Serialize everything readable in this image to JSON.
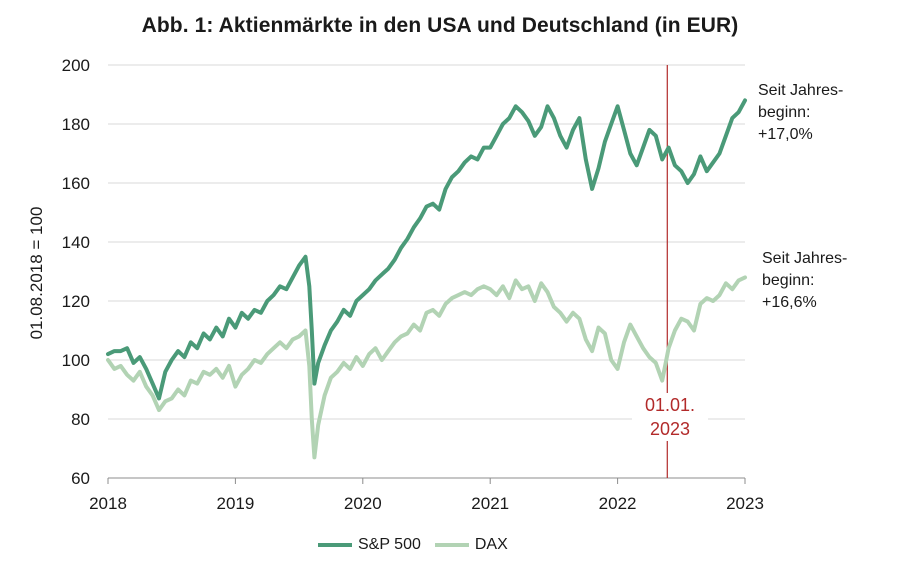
{
  "chart_data": {
    "type": "line",
    "title": "Abb. 1: Aktienmärkte  in den USA und Deutschland  (in EUR)",
    "ylabel": "01.08.2018 = 100",
    "xlabel": "",
    "ylim": [
      60,
      200
    ],
    "xlim": [
      2018,
      2023
    ],
    "yticks": [
      "200",
      "180",
      "160",
      "140",
      "120",
      "100",
      "80",
      "60"
    ],
    "xticks": [
      "2018",
      "2019",
      "2020",
      "2021",
      "2022",
      "2023"
    ],
    "grid": "horizontal",
    "legend_position": "bottom",
    "series": [
      {
        "name": "S&P 500",
        "color": "#4a9a78",
        "x": [
          2018.0,
          2018.05,
          2018.1,
          2018.15,
          2018.2,
          2018.25,
          2018.3,
          2018.35,
          2018.4,
          2018.45,
          2018.5,
          2018.55,
          2018.6,
          2018.65,
          2018.7,
          2018.75,
          2018.8,
          2018.85,
          2018.9,
          2018.95,
          2019.0,
          2019.05,
          2019.1,
          2019.15,
          2019.2,
          2019.25,
          2019.3,
          2019.35,
          2019.4,
          2019.45,
          2019.5,
          2019.55,
          2019.58,
          2019.6,
          2019.62,
          2019.65,
          2019.7,
          2019.75,
          2019.8,
          2019.85,
          2019.9,
          2019.95,
          2020.0,
          2020.05,
          2020.1,
          2020.15,
          2020.2,
          2020.25,
          2020.3,
          2020.35,
          2020.4,
          2020.45,
          2020.5,
          2020.55,
          2020.6,
          2020.65,
          2020.7,
          2020.75,
          2020.8,
          2020.85,
          2020.9,
          2020.95,
          2021.0,
          2021.05,
          2021.1,
          2021.15,
          2021.2,
          2021.25,
          2021.3,
          2021.35,
          2021.4,
          2021.45,
          2021.5,
          2021.55,
          2021.6,
          2021.65,
          2021.7,
          2021.75,
          2021.8,
          2021.85,
          2021.9,
          2021.95,
          2022.0,
          2022.05,
          2022.1,
          2022.15,
          2022.2,
          2022.25,
          2022.3,
          2022.35,
          2022.4,
          2022.45,
          2022.5,
          2022.55,
          2022.6,
          2022.65,
          2022.7,
          2022.75,
          2022.8,
          2022.85,
          2022.9,
          2022.95,
          2023.0
        ],
        "values": [
          102,
          103,
          103,
          104,
          99,
          101,
          97,
          92,
          87,
          96,
          100,
          103,
          101,
          106,
          104,
          109,
          107,
          111,
          108,
          114,
          111,
          116,
          114,
          117,
          116,
          120,
          122,
          125,
          124,
          128,
          132,
          135,
          125,
          110,
          92,
          99,
          105,
          110,
          113,
          117,
          115,
          120,
          122,
          124,
          127,
          129,
          131,
          134,
          138,
          141,
          145,
          148,
          152,
          153,
          151,
          158,
          162,
          164,
          167,
          169,
          168,
          172,
          172,
          176,
          180,
          182,
          186,
          184,
          181,
          176,
          179,
          186,
          182,
          176,
          172,
          178,
          182,
          168,
          158,
          165,
          174,
          180,
          186,
          178,
          170,
          166,
          172,
          178,
          176,
          168,
          172,
          166,
          164,
          160,
          163,
          169,
          164,
          167,
          170,
          176,
          182,
          184,
          188
        ]
      },
      {
        "name": "DAX",
        "color": "#b2d3b4",
        "x": [
          2018.0,
          2018.05,
          2018.1,
          2018.15,
          2018.2,
          2018.25,
          2018.3,
          2018.35,
          2018.4,
          2018.45,
          2018.5,
          2018.55,
          2018.6,
          2018.65,
          2018.7,
          2018.75,
          2018.8,
          2018.85,
          2018.9,
          2018.95,
          2019.0,
          2019.05,
          2019.1,
          2019.15,
          2019.2,
          2019.25,
          2019.3,
          2019.35,
          2019.4,
          2019.45,
          2019.5,
          2019.55,
          2019.58,
          2019.6,
          2019.62,
          2019.65,
          2019.7,
          2019.75,
          2019.8,
          2019.85,
          2019.9,
          2019.95,
          2020.0,
          2020.05,
          2020.1,
          2020.15,
          2020.2,
          2020.25,
          2020.3,
          2020.35,
          2020.4,
          2020.45,
          2020.5,
          2020.55,
          2020.6,
          2020.65,
          2020.7,
          2020.75,
          2020.8,
          2020.85,
          2020.9,
          2020.95,
          2021.0,
          2021.05,
          2021.1,
          2021.15,
          2021.2,
          2021.25,
          2021.3,
          2021.35,
          2021.4,
          2021.45,
          2021.5,
          2021.55,
          2021.6,
          2021.65,
          2021.7,
          2021.75,
          2021.8,
          2021.85,
          2021.9,
          2021.95,
          2022.0,
          2022.05,
          2022.1,
          2022.15,
          2022.2,
          2022.25,
          2022.3,
          2022.35,
          2022.4,
          2022.45,
          2022.5,
          2022.55,
          2022.6,
          2022.65,
          2022.7,
          2022.75,
          2022.8,
          2022.85,
          2022.9,
          2022.95,
          2023.0
        ],
        "values": [
          100,
          97,
          98,
          95,
          93,
          96,
          91,
          88,
          83,
          86,
          87,
          90,
          88,
          93,
          92,
          96,
          95,
          97,
          94,
          98,
          91,
          95,
          97,
          100,
          99,
          102,
          104,
          106,
          104,
          107,
          108,
          110,
          98,
          80,
          67,
          78,
          88,
          94,
          96,
          99,
          97,
          101,
          98,
          102,
          104,
          100,
          103,
          106,
          108,
          109,
          112,
          110,
          116,
          117,
          115,
          119,
          121,
          122,
          123,
          122,
          124,
          125,
          124,
          122,
          125,
          121,
          127,
          124,
          125,
          120,
          126,
          123,
          118,
          116,
          113,
          116,
          114,
          107,
          103,
          111,
          109,
          100,
          97,
          106,
          112,
          108,
          104,
          101,
          99,
          93,
          104,
          110,
          114,
          113,
          110,
          119,
          121,
          120,
          122,
          126,
          124,
          127,
          128
        ]
      }
    ],
    "annotations": {
      "marker_line_x": 2022.39,
      "marker_label_line1": "01.01.",
      "marker_label_line2": "2023",
      "marker_color": "#b22a2a",
      "sp_note_line1": "Seit Jahres-",
      "sp_note_line2": "beginn:",
      "sp_note_line3": "+17,0%",
      "dax_note_line1": "Seit Jahres-",
      "dax_note_line2": "beginn:",
      "dax_note_line3": "+16,6%"
    }
  }
}
